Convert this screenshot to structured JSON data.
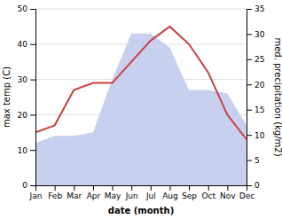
{
  "chart_data": {
    "type": "line",
    "categories": [
      "Jan",
      "Feb",
      "Mar",
      "Apr",
      "May",
      "Jun",
      "Jul",
      "Aug",
      "Sep",
      "Oct",
      "Nov",
      "Dec"
    ],
    "series": [
      {
        "type": "area",
        "color": "#c8d0f0",
        "values": [
          12,
          14,
          14,
          15,
          30,
          43,
          43,
          39,
          27,
          27,
          26,
          17
        ]
      },
      {
        "type": "line",
        "color": "#c94040",
        "values": [
          15,
          17,
          27,
          29,
          29,
          35,
          41,
          45,
          40,
          32,
          20,
          13
        ]
      }
    ],
    "ylim": [
      0,
      50
    ],
    "yticks": [
      0,
      10,
      20,
      30,
      40,
      50
    ],
    "y2lim": [
      0,
      35
    ],
    "y2ticks": [
      0,
      5,
      10,
      15,
      20,
      25,
      30,
      35
    ],
    "ylabel": "max temp (C)",
    "y2label": "med. precipitation (kg/m2)",
    "xlabel": "date (month)",
    "grid": true
  }
}
